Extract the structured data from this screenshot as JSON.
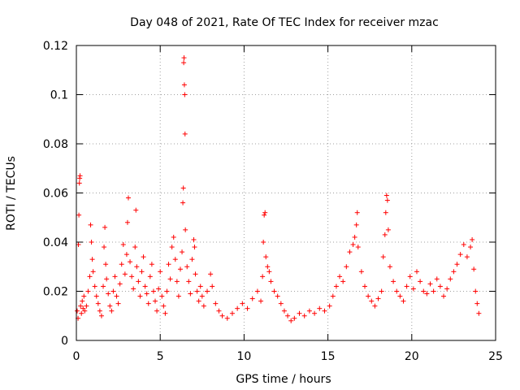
{
  "chart_data": {
    "type": "scatter",
    "title": "Day 048 of 2021, Rate Of TEC Index for receiver mzac",
    "xlabel": "GPS time / hours",
    "ylabel": "ROTI / TECUs",
    "xlim": [
      0,
      25
    ],
    "ylim": [
      0,
      0.12
    ],
    "x_ticks": [
      0,
      5,
      10,
      15,
      20,
      25
    ],
    "y_ticks": [
      0,
      0.02,
      0.04,
      0.06,
      0.08,
      0.1,
      0.12
    ],
    "x_tick_labels": [
      "0",
      "5",
      "10",
      "15",
      "20",
      "25"
    ],
    "y_tick_labels": [
      "0",
      "0.02",
      "0.04",
      "0.06",
      "0.08",
      "0.1",
      "0.12"
    ],
    "grid": true,
    "marker": "+",
    "color": "#ff0000",
    "series": [
      {
        "name": "ROTI",
        "points": [
          [
            0.05,
            0.012
          ],
          [
            0.1,
            0.009
          ],
          [
            0.12,
            0.039
          ],
          [
            0.15,
            0.051
          ],
          [
            0.18,
            0.064
          ],
          [
            0.2,
            0.066
          ],
          [
            0.22,
            0.067
          ],
          [
            0.25,
            0.014
          ],
          [
            0.3,
            0.011
          ],
          [
            0.35,
            0.016
          ],
          [
            0.4,
            0.013
          ],
          [
            0.45,
            0.018
          ],
          [
            0.5,
            0.012
          ],
          [
            0.6,
            0.014
          ],
          [
            0.7,
            0.02
          ],
          [
            0.8,
            0.026
          ],
          [
            0.85,
            0.047
          ],
          [
            0.9,
            0.04
          ],
          [
            0.95,
            0.033
          ],
          [
            1.0,
            0.028
          ],
          [
            1.1,
            0.022
          ],
          [
            1.2,
            0.018
          ],
          [
            1.3,
            0.015
          ],
          [
            1.4,
            0.012
          ],
          [
            1.5,
            0.01
          ],
          [
            1.6,
            0.022
          ],
          [
            1.65,
            0.038
          ],
          [
            1.7,
            0.046
          ],
          [
            1.75,
            0.031
          ],
          [
            1.8,
            0.025
          ],
          [
            1.9,
            0.019
          ],
          [
            2.0,
            0.014
          ],
          [
            2.1,
            0.012
          ],
          [
            2.2,
            0.02
          ],
          [
            2.3,
            0.026
          ],
          [
            2.4,
            0.018
          ],
          [
            2.5,
            0.015
          ],
          [
            2.6,
            0.023
          ],
          [
            2.7,
            0.031
          ],
          [
            2.8,
            0.039
          ],
          [
            2.9,
            0.027
          ],
          [
            3.0,
            0.035
          ],
          [
            3.05,
            0.048
          ],
          [
            3.1,
            0.058
          ],
          [
            3.2,
            0.032
          ],
          [
            3.3,
            0.026
          ],
          [
            3.4,
            0.021
          ],
          [
            3.5,
            0.038
          ],
          [
            3.55,
            0.053
          ],
          [
            3.6,
            0.03
          ],
          [
            3.7,
            0.024
          ],
          [
            3.8,
            0.018
          ],
          [
            3.9,
            0.028
          ],
          [
            4.0,
            0.034
          ],
          [
            4.1,
            0.022
          ],
          [
            4.2,
            0.019
          ],
          [
            4.3,
            0.015
          ],
          [
            4.4,
            0.026
          ],
          [
            4.5,
            0.031
          ],
          [
            4.6,
            0.02
          ],
          [
            4.7,
            0.016
          ],
          [
            4.8,
            0.012
          ],
          [
            4.9,
            0.021
          ],
          [
            5.0,
            0.028
          ],
          [
            5.1,
            0.018
          ],
          [
            5.2,
            0.014
          ],
          [
            5.3,
            0.011
          ],
          [
            5.4,
            0.02
          ],
          [
            5.5,
            0.031
          ],
          [
            5.6,
            0.025
          ],
          [
            5.7,
            0.038
          ],
          [
            5.8,
            0.042
          ],
          [
            5.9,
            0.033
          ],
          [
            6.0,
            0.024
          ],
          [
            6.1,
            0.018
          ],
          [
            6.2,
            0.029
          ],
          [
            6.3,
            0.036
          ],
          [
            6.35,
            0.056
          ],
          [
            6.38,
            0.062
          ],
          [
            6.4,
            0.113
          ],
          [
            6.42,
            0.115
          ],
          [
            6.44,
            0.104
          ],
          [
            6.46,
            0.1
          ],
          [
            6.48,
            0.084
          ],
          [
            6.5,
            0.045
          ],
          [
            6.6,
            0.03
          ],
          [
            6.7,
            0.024
          ],
          [
            6.8,
            0.019
          ],
          [
            6.9,
            0.033
          ],
          [
            7.0,
            0.041
          ],
          [
            7.05,
            0.038
          ],
          [
            7.1,
            0.027
          ],
          [
            7.2,
            0.02
          ],
          [
            7.3,
            0.016
          ],
          [
            7.4,
            0.022
          ],
          [
            7.5,
            0.018
          ],
          [
            7.6,
            0.014
          ],
          [
            7.8,
            0.02
          ],
          [
            8.0,
            0.027
          ],
          [
            8.1,
            0.022
          ],
          [
            8.3,
            0.015
          ],
          [
            8.5,
            0.012
          ],
          [
            8.7,
            0.01
          ],
          [
            9.0,
            0.009
          ],
          [
            9.3,
            0.011
          ],
          [
            9.6,
            0.013
          ],
          [
            9.9,
            0.015
          ],
          [
            10.2,
            0.013
          ],
          [
            10.5,
            0.017
          ],
          [
            10.8,
            0.02
          ],
          [
            11.0,
            0.016
          ],
          [
            11.1,
            0.026
          ],
          [
            11.15,
            0.04
          ],
          [
            11.2,
            0.051
          ],
          [
            11.25,
            0.052
          ],
          [
            11.3,
            0.034
          ],
          [
            11.4,
            0.03
          ],
          [
            11.5,
            0.028
          ],
          [
            11.6,
            0.024
          ],
          [
            11.8,
            0.02
          ],
          [
            12.0,
            0.018
          ],
          [
            12.2,
            0.015
          ],
          [
            12.4,
            0.012
          ],
          [
            12.6,
            0.01
          ],
          [
            12.8,
            0.008
          ],
          [
            13.0,
            0.009
          ],
          [
            13.3,
            0.011
          ],
          [
            13.6,
            0.01
          ],
          [
            13.9,
            0.012
          ],
          [
            14.2,
            0.011
          ],
          [
            14.5,
            0.013
          ],
          [
            14.8,
            0.012
          ],
          [
            15.1,
            0.014
          ],
          [
            15.3,
            0.018
          ],
          [
            15.5,
            0.022
          ],
          [
            15.7,
            0.026
          ],
          [
            15.9,
            0.024
          ],
          [
            16.1,
            0.03
          ],
          [
            16.3,
            0.036
          ],
          [
            16.5,
            0.039
          ],
          [
            16.6,
            0.042
          ],
          [
            16.7,
            0.047
          ],
          [
            16.75,
            0.052
          ],
          [
            16.8,
            0.038
          ],
          [
            17.0,
            0.028
          ],
          [
            17.2,
            0.022
          ],
          [
            17.4,
            0.018
          ],
          [
            17.6,
            0.016
          ],
          [
            17.8,
            0.014
          ],
          [
            18.0,
            0.017
          ],
          [
            18.2,
            0.02
          ],
          [
            18.3,
            0.034
          ],
          [
            18.4,
            0.043
          ],
          [
            18.45,
            0.052
          ],
          [
            18.5,
            0.059
          ],
          [
            18.55,
            0.057
          ],
          [
            18.6,
            0.045
          ],
          [
            18.7,
            0.03
          ],
          [
            18.9,
            0.024
          ],
          [
            19.1,
            0.02
          ],
          [
            19.3,
            0.018
          ],
          [
            19.5,
            0.016
          ],
          [
            19.7,
            0.022
          ],
          [
            19.9,
            0.026
          ],
          [
            20.1,
            0.021
          ],
          [
            20.3,
            0.028
          ],
          [
            20.5,
            0.024
          ],
          [
            20.7,
            0.02
          ],
          [
            20.9,
            0.019
          ],
          [
            21.1,
            0.023
          ],
          [
            21.3,
            0.02
          ],
          [
            21.5,
            0.025
          ],
          [
            21.7,
            0.022
          ],
          [
            21.9,
            0.018
          ],
          [
            22.1,
            0.021
          ],
          [
            22.3,
            0.025
          ],
          [
            22.5,
            0.028
          ],
          [
            22.7,
            0.031
          ],
          [
            22.9,
            0.035
          ],
          [
            23.1,
            0.039
          ],
          [
            23.3,
            0.034
          ],
          [
            23.5,
            0.038
          ],
          [
            23.6,
            0.041
          ],
          [
            23.7,
            0.029
          ],
          [
            23.8,
            0.02
          ],
          [
            23.9,
            0.015
          ],
          [
            24.0,
            0.011
          ]
        ]
      }
    ]
  }
}
